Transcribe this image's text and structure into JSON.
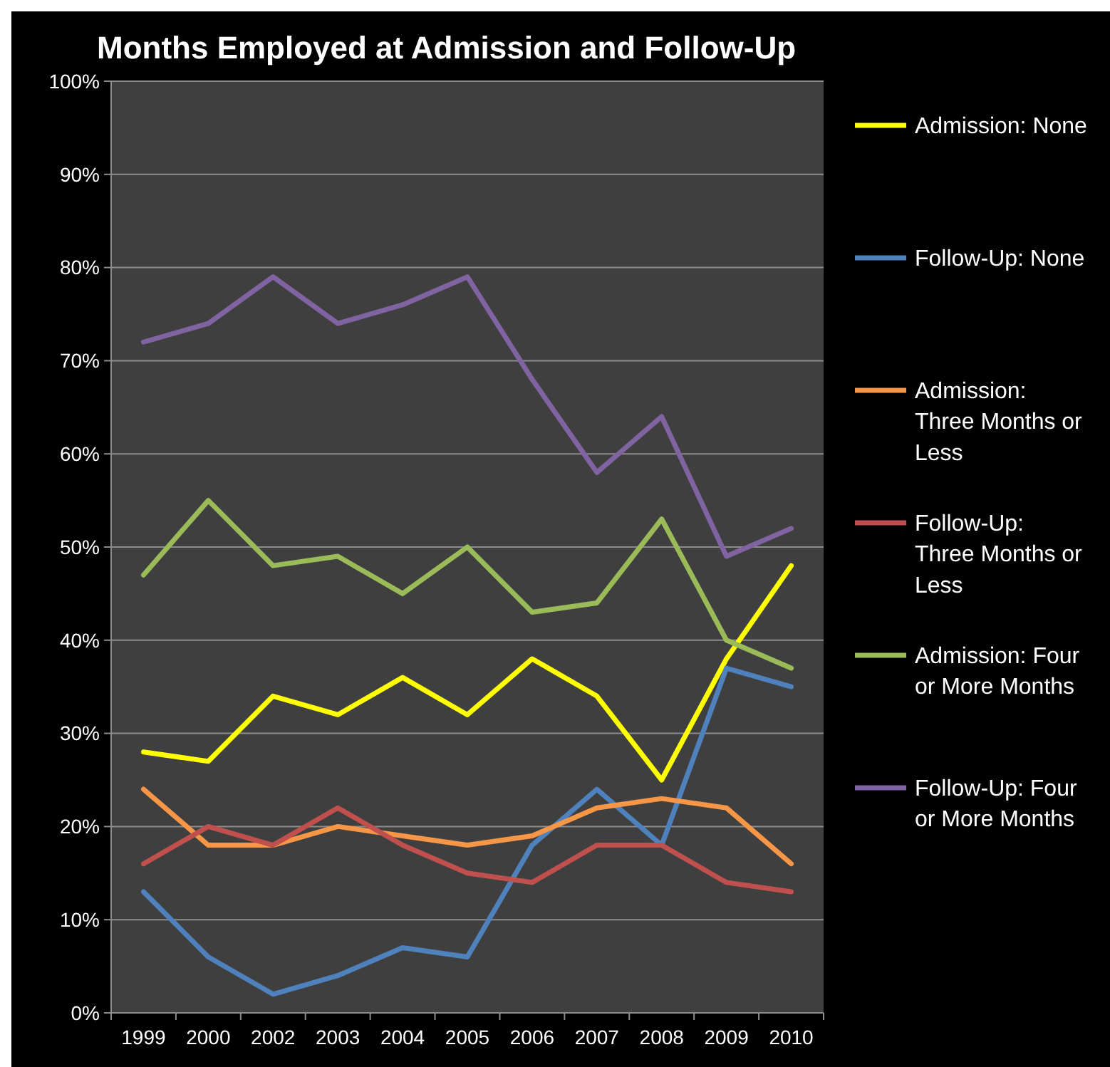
{
  "chart_data": {
    "type": "line",
    "title": "Months Employed at Admission and Follow-Up",
    "categories": [
      "1999",
      "2000",
      "2002",
      "2003",
      "2004",
      "2005",
      "2006",
      "2007",
      "2008",
      "2009",
      "2010"
    ],
    "series": [
      {
        "name": "Admission: None",
        "color": "#ffff00",
        "values": [
          28,
          27,
          34,
          32,
          36,
          32,
          38,
          34,
          25,
          38,
          48
        ]
      },
      {
        "name": "Follow-Up: None",
        "color": "#4f81bd",
        "values": [
          13,
          6,
          2,
          4,
          7,
          6,
          18,
          24,
          18,
          37,
          35
        ]
      },
      {
        "name": "Admission: Three Months or Less",
        "color": "#f79646",
        "values": [
          24,
          18,
          18,
          20,
          19,
          18,
          19,
          22,
          23,
          22,
          16
        ]
      },
      {
        "name": "Follow-Up: Three Months or Less",
        "color": "#c0504d",
        "values": [
          16,
          20,
          18,
          22,
          18,
          15,
          14,
          18,
          18,
          14,
          13
        ]
      },
      {
        "name": "Admission: Four or More Months",
        "color": "#9bbb59",
        "values": [
          47,
          55,
          48,
          49,
          45,
          50,
          43,
          44,
          53,
          40,
          37
        ]
      },
      {
        "name": "Follow-Up: Four or More Months",
        "color": "#8064a2",
        "values": [
          72,
          74,
          79,
          74,
          76,
          79,
          68,
          58,
          64,
          49,
          52
        ]
      }
    ],
    "ylim": [
      0,
      100
    ],
    "yticks": [
      {
        "value": 0,
        "label": "0%"
      },
      {
        "value": 10,
        "label": "10%"
      },
      {
        "value": 20,
        "label": "20%"
      },
      {
        "value": 30,
        "label": "30%"
      },
      {
        "value": 40,
        "label": "40%"
      },
      {
        "value": 50,
        "label": "50%"
      },
      {
        "value": 60,
        "label": "60%"
      },
      {
        "value": 70,
        "label": "70%"
      },
      {
        "value": 80,
        "label": "80%"
      },
      {
        "value": 90,
        "label": "90%"
      },
      {
        "value": 100,
        "label": "100%"
      }
    ],
    "grid": "y",
    "legend": "right",
    "marker": "none",
    "line_style": "solid"
  }
}
